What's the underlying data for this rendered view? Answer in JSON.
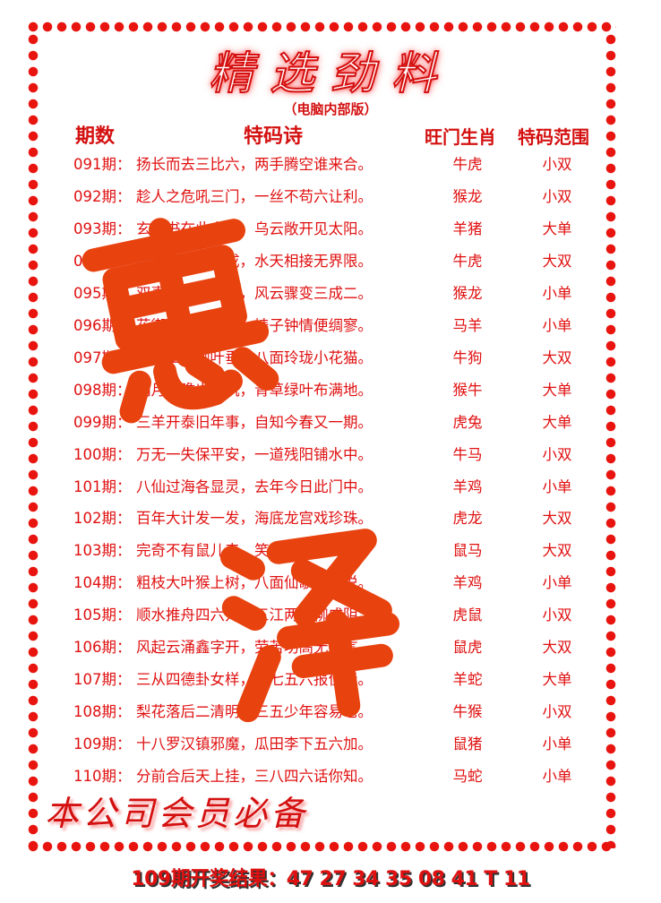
{
  "title": "精选劲料",
  "subtitle": "（电脑内部版）",
  "headers": {
    "period": "期数",
    "poem": "特码诗",
    "zodiac": "旺门生肖",
    "range": "特码范围"
  },
  "rows": [
    {
      "period": "091期：",
      "poem": "扬长而去三比六，两手腾空谁来合。",
      "zodiac": "牛虎",
      "range": "小双"
    },
    {
      "period": "092期：",
      "poem": "趁人之危吼三门，一丝不苟六让利。",
      "zodiac": "猴龙",
      "range": "小双"
    },
    {
      "period": "093期：",
      "poem": "玄机书在此言中，乌云敞开见太阳。",
      "zodiac": "羊猪",
      "range": "大单"
    },
    {
      "period": "094期：",
      "poem": "同心协力万事成，水天相接无界限。",
      "zodiac": "牛虎",
      "range": "大双"
    },
    {
      "period": "095期：",
      "poem": "双喜临门一大篇，风云骤变三成二。",
      "zodiac": "猴龙",
      "range": "小单"
    },
    {
      "period": "096期：",
      "poem": "花街柳巷到处游，婊子钟情便绸寥。",
      "zodiac": "马羊",
      "range": "小单"
    },
    {
      "period": "097期：",
      "poem": "早春二月柳叶垂，八面玲珑小花猫。",
      "zodiac": "牛狗",
      "range": "大双"
    },
    {
      "period": "098期：",
      "poem": "明月张瞻出高机，青草绿叶布满地。",
      "zodiac": "猴牛",
      "range": "大单"
    },
    {
      "period": "099期：",
      "poem": "三羊开泰旧年事，自知今春又一期。",
      "zodiac": "虎兔",
      "range": "大单"
    },
    {
      "period": "100期：",
      "poem": "万无一失保平安，一道残阳铺水中。",
      "zodiac": "牛马",
      "range": "小双"
    },
    {
      "period": "101期：",
      "poem": "八仙过海各显灵，去年今日此门中。",
      "zodiac": "羊鸡",
      "range": "小单"
    },
    {
      "period": "102期：",
      "poem": "百年大计发一发，海底龙宫戏珍珠。",
      "zodiac": "虎龙",
      "range": "大双"
    },
    {
      "period": "103期：",
      "poem": "完奇不有鼠儿来，笑逐颜开双一春。",
      "zodiac": "鼠马",
      "range": "大双"
    },
    {
      "period": "104期：",
      "poem": "粗枝大叶猴上树，八面仙歌心情悦。",
      "zodiac": "羊鸡",
      "range": "小单"
    },
    {
      "period": "105期：",
      "poem": "顺水推舟四六开，三江两岸柳成阴。",
      "zodiac": "虎鼠",
      "range": "小双"
    },
    {
      "period": "106期：",
      "poem": "风起云涌鑫字开，劳苦功高无怨言。",
      "zodiac": "鼠虎",
      "range": "大双"
    },
    {
      "period": "107期：",
      "poem": "三从四德卦女样，四七五六报佳音。",
      "zodiac": "羊蛇",
      "range": "大单"
    },
    {
      "period": "108期：",
      "poem": "梨花落后二清明，三五少年容易老。",
      "zodiac": "牛猴",
      "range": "小双"
    },
    {
      "period": "109期：",
      "poem": "十八罗汉镇邪魔，瓜田李下五六加。",
      "zodiac": "鼠猪",
      "range": "小单"
    },
    {
      "period": "110期：",
      "poem": "分前合后天上挂，三八四六话你知。",
      "zodiac": "马蛇",
      "range": "小单"
    }
  ],
  "watermark": [
    "惠",
    "泽"
  ],
  "footer_note": "本公司会员必备",
  "result": "109期开奖结果：47 27 34 35 08 41 T 11",
  "colors": {
    "primary": "#e01010",
    "watermark": "#e8420f"
  }
}
